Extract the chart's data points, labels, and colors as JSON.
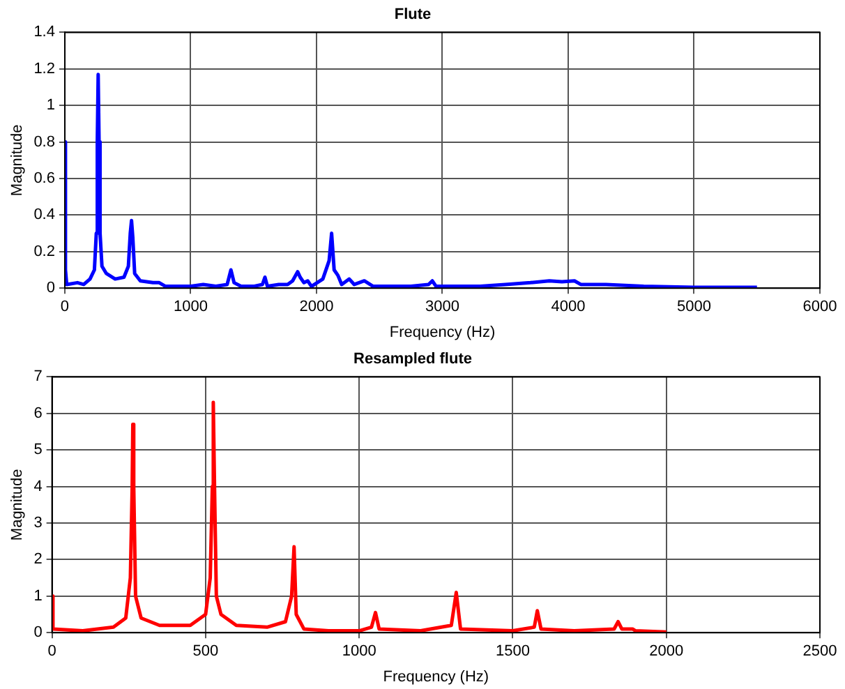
{
  "chart_data": [
    {
      "type": "line",
      "title": "Flute",
      "xlabel": "Frequency (Hz)",
      "ylabel": "Magnitude",
      "xlim": [
        0,
        6000
      ],
      "xticks": [
        0,
        1000,
        2000,
        3000,
        4000,
        5000,
        6000
      ],
      "ylim": [
        0,
        1.4
      ],
      "yticks": [
        0,
        0.2,
        0.4,
        0.6,
        0.8,
        1,
        1.2,
        1.4
      ],
      "grid": true,
      "legend": false,
      "marker": "none",
      "line_style": "solid",
      "series": [
        {
          "color": "#0000ff",
          "x": [
            0,
            5,
            15,
            100,
            150,
            200,
            235,
            250,
            258,
            265,
            272,
            280,
            295,
            330,
            400,
            470,
            505,
            520,
            530,
            540,
            555,
            600,
            700,
            750,
            800,
            900,
            1000,
            1100,
            1200,
            1290,
            1320,
            1345,
            1400,
            1500,
            1570,
            1590,
            1610,
            1700,
            1770,
            1810,
            1850,
            1870,
            1900,
            1930,
            1960,
            2050,
            2100,
            2120,
            2140,
            2170,
            2200,
            2260,
            2300,
            2380,
            2450,
            2600,
            2750,
            2890,
            2920,
            2950,
            3100,
            3300,
            3500,
            3700,
            3850,
            3950,
            4050,
            4100,
            4300,
            4600,
            5000,
            5500
          ],
          "values": [
            0.8,
            0.1,
            0.02,
            0.03,
            0.02,
            0.05,
            0.1,
            0.3,
            0.8,
            1.17,
            0.8,
            0.3,
            0.12,
            0.08,
            0.05,
            0.06,
            0.12,
            0.3,
            0.37,
            0.28,
            0.08,
            0.04,
            0.03,
            0.03,
            0.01,
            0.01,
            0.01,
            0.02,
            0.01,
            0.02,
            0.1,
            0.03,
            0.01,
            0.01,
            0.02,
            0.06,
            0.01,
            0.02,
            0.02,
            0.04,
            0.09,
            0.06,
            0.03,
            0.04,
            0.01,
            0.05,
            0.15,
            0.3,
            0.1,
            0.07,
            0.02,
            0.05,
            0.02,
            0.04,
            0.01,
            0.01,
            0.01,
            0.02,
            0.04,
            0.01,
            0.01,
            0.01,
            0.02,
            0.03,
            0.04,
            0.035,
            0.04,
            0.02,
            0.02,
            0.01,
            0.005,
            0.005
          ]
        }
      ]
    },
    {
      "type": "line",
      "title": "Resampled flute",
      "xlabel": "Frequency (Hz)",
      "ylabel": "Magnitude",
      "xlim": [
        0,
        2500
      ],
      "xticks": [
        0,
        500,
        1000,
        1500,
        2000,
        2500
      ],
      "ylim": [
        0,
        7
      ],
      "yticks": [
        0,
        1,
        2,
        3,
        4,
        5,
        6,
        7
      ],
      "grid": true,
      "legend": false,
      "marker": "none",
      "line_style": "solid",
      "series": [
        {
          "color": "#ff0000",
          "x": [
            0,
            3,
            100,
            200,
            240,
            255,
            261,
            263,
            266,
            272,
            290,
            350,
            450,
            500,
            515,
            522,
            525,
            529,
            535,
            550,
            600,
            700,
            760,
            780,
            788,
            795,
            820,
            900,
            1000,
            1040,
            1053,
            1065,
            1200,
            1300,
            1316,
            1330,
            1500,
            1570,
            1580,
            1592,
            1700,
            1830,
            1843,
            1855,
            1890,
            1900,
            2000
          ],
          "values": [
            1,
            0.1,
            0.05,
            0.15,
            0.4,
            1.5,
            4,
            5.7,
            4,
            1,
            0.4,
            0.2,
            0.2,
            0.5,
            1.5,
            4,
            6.3,
            4,
            1,
            0.5,
            0.2,
            0.15,
            0.3,
            1,
            2.35,
            0.5,
            0.1,
            0.05,
            0.05,
            0.15,
            0.55,
            0.1,
            0.05,
            0.2,
            1.1,
            0.1,
            0.05,
            0.15,
            0.6,
            0.1,
            0.05,
            0.1,
            0.3,
            0.1,
            0.1,
            0.05,
            0.02
          ]
        }
      ]
    }
  ]
}
